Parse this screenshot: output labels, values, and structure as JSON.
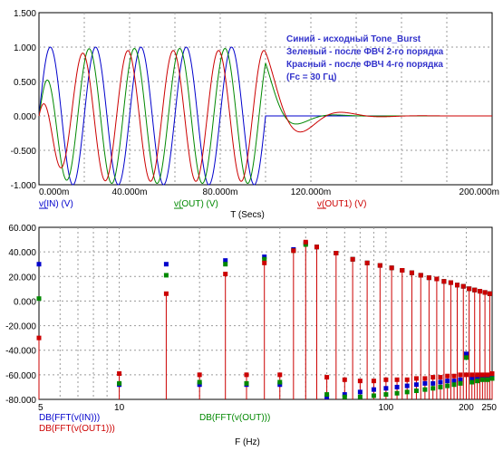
{
  "chart_data": [
    {
      "type": "line",
      "panel": "time",
      "xlabel": "T (Secs)",
      "xlim": [
        0,
        0.2
      ],
      "ylim": [
        -1.0,
        1.5
      ],
      "x_ticks": [
        "0.000m",
        "40.000m",
        "80.000m",
        "120.000m",
        "200.000m"
      ],
      "y_ticks": [
        "1.500",
        "1.000",
        "0.500",
        "0.000",
        "-0.500",
        "-1.000"
      ],
      "legend_lines": [
        "Синий - исходный Tone_Burst",
        "Зеленый - после ФВЧ 2-го порядка",
        "Красный - после ФВЧ 4-го порядка",
        "(Fc = 30 Гц)"
      ],
      "series": [
        {
          "name": "v(IN) (V)",
          "color": "#0000cc",
          "freq_hz": 50,
          "amplitude": 1.0,
          "burst_end_s": 0.1
        },
        {
          "name": "v(OUT) (V)",
          "color": "#008800",
          "freq_hz": 50,
          "amplitude": 0.98,
          "burst_end_s": 0.1
        },
        {
          "name": "v(OUT1) (V)",
          "color": "#cc0000",
          "freq_hz": 50,
          "amplitude": 0.95,
          "burst_end_s": 0.1
        }
      ]
    },
    {
      "type": "scatter",
      "panel": "fft",
      "xlabel": "F (Hz)",
      "x_scale": "log",
      "xlim": [
        5,
        250
      ],
      "ylim": [
        -80,
        60
      ],
      "x_ticks": [
        "5",
        "10",
        "100",
        "200",
        "250"
      ],
      "y_ticks": [
        "60.000",
        "40.000",
        "20.000",
        "0.000",
        "-20.000",
        "-40.000",
        "-60.000",
        "-80.000"
      ],
      "x": [
        5,
        10,
        15,
        20,
        25,
        30,
        35,
        40,
        45,
        50,
        55,
        60,
        65,
        70,
        75,
        80,
        85,
        90,
        95,
        100,
        105,
        110,
        115,
        120,
        125,
        130,
        135,
        140,
        145,
        150,
        155,
        160,
        165,
        170,
        175,
        180,
        185,
        190,
        195,
        200,
        205,
        210,
        215,
        220,
        225,
        230,
        235,
        240,
        245,
        250
      ],
      "series": [
        {
          "name": "DB(FFT(v(IN)))",
          "color": "#0000cc",
          "values": [
            30,
            -68,
            30,
            -68,
            33,
            -68,
            36,
            -68,
            42,
            47,
            44,
            -78,
            39,
            -76,
            34,
            -74,
            31,
            -72,
            29,
            -71,
            27,
            -70,
            25,
            -69,
            23,
            -68,
            21,
            -67,
            19,
            -67,
            18,
            -66,
            16,
            -65,
            15,
            -65,
            13,
            -64,
            12,
            -43,
            10,
            -63,
            9,
            -62,
            8,
            -62,
            7,
            -62,
            6,
            -61
          ]
        },
        {
          "name": "DB(FFT(v(OUT)))",
          "color": "#008800",
          "values": [
            2,
            -67,
            21,
            -66,
            30,
            -67,
            34,
            -66,
            41,
            46,
            44,
            -76,
            39,
            -78,
            34,
            -78,
            31,
            -77,
            29,
            -76,
            27,
            -75,
            25,
            -74,
            23,
            -73,
            21,
            -72,
            19,
            -71,
            18,
            -70,
            16,
            -69,
            15,
            -68,
            13,
            -67,
            12,
            -46,
            10,
            -66,
            9,
            -65,
            8,
            -64,
            7,
            -64,
            6,
            -63
          ]
        },
        {
          "name": "DB(FFT(v(OUT1)))",
          "color": "#cc0000",
          "values": [
            -30,
            -59,
            6,
            -60,
            22,
            -60,
            31,
            -60,
            41,
            48,
            44,
            -62,
            39,
            -64,
            34,
            -65,
            31,
            -65,
            29,
            -64,
            27,
            -64,
            25,
            -64,
            23,
            -63,
            21,
            -63,
            19,
            -62,
            18,
            -62,
            16,
            -61,
            15,
            -61,
            13,
            -60,
            12,
            -60,
            10,
            -60,
            9,
            -60,
            8,
            -60,
            7,
            -60,
            6,
            -59
          ]
        }
      ]
    }
  ]
}
